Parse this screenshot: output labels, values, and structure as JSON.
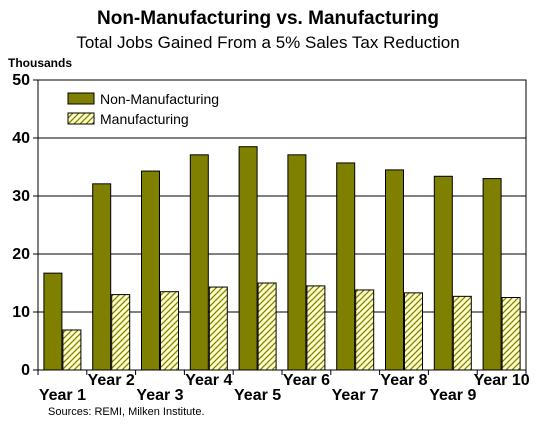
{
  "chart_data": {
    "type": "bar",
    "title": "Non-Manufacturing vs. Manufacturing",
    "subtitle": "Total Jobs Gained From a 5% Sales Tax Reduction",
    "ylabel": "Thousands",
    "xlabel": "",
    "source": "Sources: REMI, Milken Institute.",
    "categories": [
      "Year 1",
      "Year 2",
      "Year 3",
      "Year 4",
      "Year 5",
      "Year 6",
      "Year 7",
      "Year 8",
      "Year 9",
      "Year 10"
    ],
    "series": [
      {
        "name": "Non-Manufacturing",
        "values": [
          16.7,
          32.1,
          34.3,
          37.1,
          38.5,
          37.1,
          35.7,
          34.5,
          33.4,
          33.0
        ],
        "color": "#808000",
        "pattern": "solid"
      },
      {
        "name": "Manufacturing",
        "values": [
          6.9,
          13.0,
          13.5,
          14.3,
          15.0,
          14.5,
          13.8,
          13.3,
          12.7,
          12.5
        ],
        "color": "#ffffcc",
        "pattern": "hatch"
      }
    ],
    "ylim": [
      0,
      50
    ],
    "yticks": [
      0,
      10,
      20,
      30,
      40,
      50
    ],
    "grid": true,
    "legend": "top-left"
  }
}
